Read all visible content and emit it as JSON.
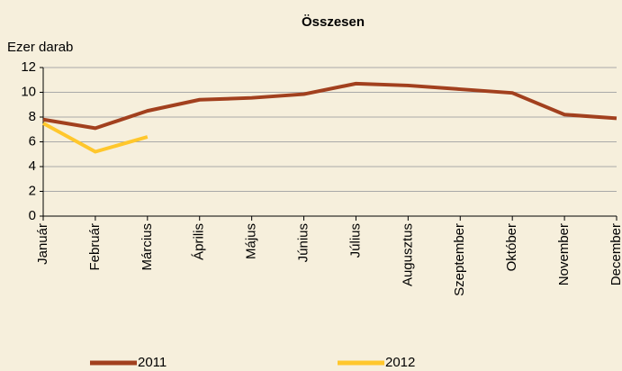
{
  "chart_data": {
    "type": "line",
    "title": "Összesen",
    "y_label": "Ezer darab",
    "categories": [
      "Január",
      "Február",
      "Március",
      "Április",
      "Május",
      "Június",
      "Július",
      "Augusztus",
      "Szeptember",
      "Október",
      "November",
      "December"
    ],
    "series": [
      {
        "name": "2011",
        "color": "#a2401e",
        "values": [
          7.8,
          7.1,
          8.5,
          9.4,
          9.55,
          9.85,
          10.7,
          10.55,
          10.25,
          9.95,
          8.2,
          7.9
        ]
      },
      {
        "name": "2012",
        "color": "#ffc72c",
        "values": [
          7.5,
          5.2,
          6.4,
          null,
          null,
          null,
          null,
          null,
          null,
          null,
          null,
          null
        ]
      }
    ],
    "ylim": [
      0,
      12
    ],
    "yticks": [
      0,
      2,
      4,
      6,
      8,
      10,
      12
    ],
    "grid": true,
    "legend": "bottom"
  }
}
